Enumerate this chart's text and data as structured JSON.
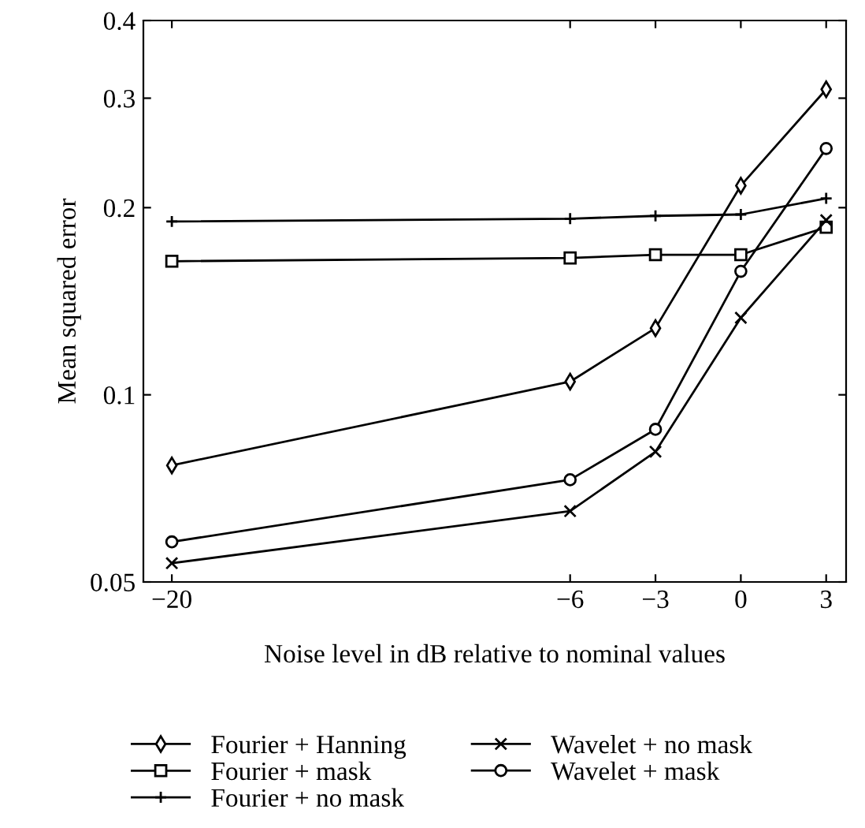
{
  "chart_data": {
    "type": "line",
    "xlabel": "Noise level in dB relative to nominal values",
    "ylabel": "Mean squared error",
    "x": [
      -20,
      -6,
      -3,
      0,
      3
    ],
    "series": [
      {
        "name": "Fourier + Hanning",
        "color": "#000000",
        "marker": "diamond",
        "values": [
          0.077,
          0.105,
          0.128,
          0.217,
          0.31
        ]
      },
      {
        "name": "Fourier + mask",
        "color": "#000000",
        "marker": "square",
        "values": [
          0.164,
          0.166,
          0.168,
          0.168,
          0.186
        ]
      },
      {
        "name": "Fourier + no mask",
        "color": "#000000",
        "marker": "plus",
        "values": [
          0.19,
          0.192,
          0.194,
          0.195,
          0.207
        ]
      },
      {
        "name": "Wavelet + no mask",
        "color": "#000000",
        "marker": "cross",
        "values": [
          0.0536,
          0.065,
          0.081,
          0.133,
          0.191
        ]
      },
      {
        "name": "Wavelet + mask",
        "color": "#000000",
        "marker": "circle",
        "values": [
          0.058,
          0.073,
          0.088,
          0.158,
          0.249
        ]
      }
    ],
    "log": "y",
    "xlim": [
      -21,
      3.7
    ],
    "ylim": [
      0.05,
      0.4
    ],
    "xticks": [
      {
        "value": -20,
        "label": "−20"
      },
      {
        "value": -6,
        "label": "−6"
      },
      {
        "value": -3,
        "label": "−3"
      },
      0,
      3
    ],
    "yticks": [
      0.05,
      0.1,
      0.2,
      0.3,
      0.4
    ],
    "grid": false,
    "legend": "bottom",
    "line_style": "solid"
  }
}
